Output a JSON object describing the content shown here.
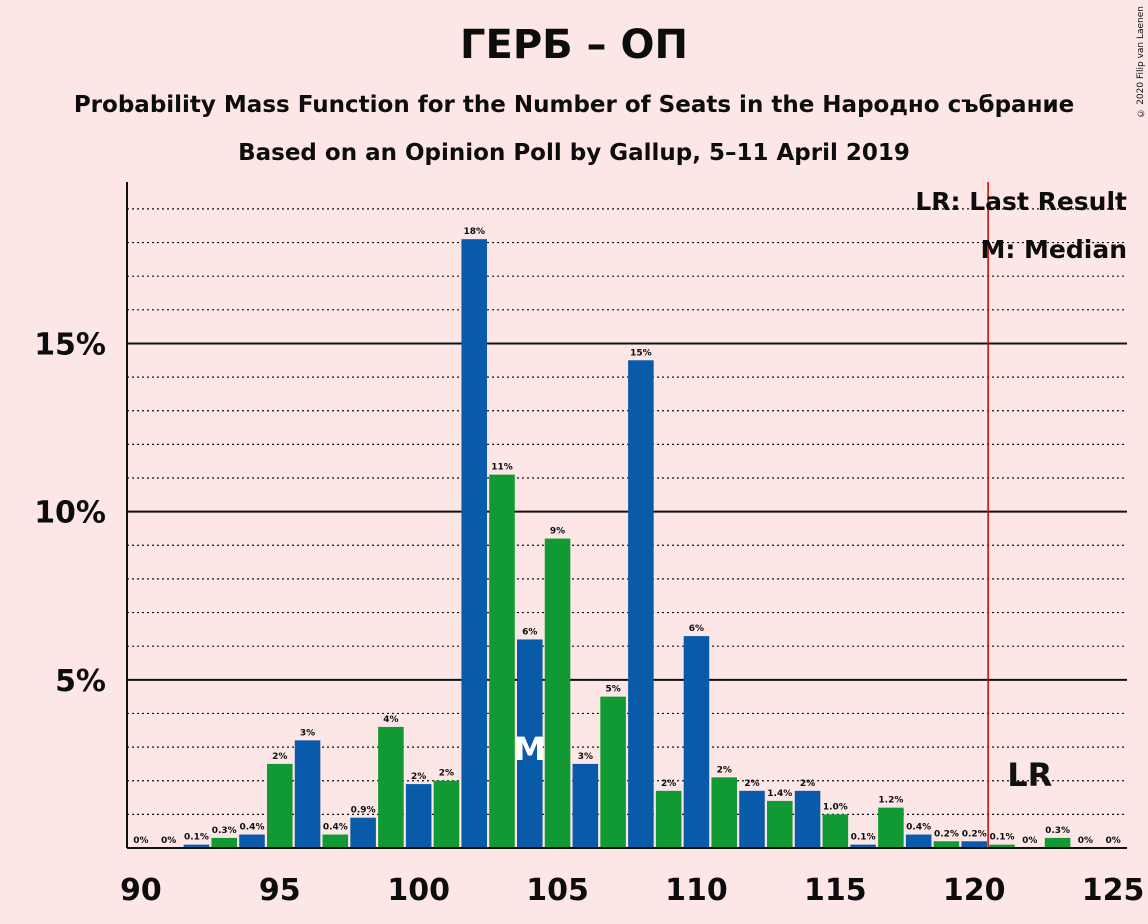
{
  "header": {
    "title": "ГЕРБ – ОП",
    "subtitle1": "Probability Mass Function for the Number of Seats in the Народно събрание",
    "subtitle2": "Based on an Opinion Poll by Gallup, 5–11 April 2019",
    "copyright": "© 2020 Filip van Laenen"
  },
  "legend": {
    "lr": "LR: Last Result",
    "median": "M: Median",
    "lr_marker": "LR",
    "median_marker": "M"
  },
  "colors": {
    "blue": "#0a5aaa",
    "green": "#119933",
    "last_result_line": "#cc0000",
    "background": "#fde6e6"
  },
  "chart_data": {
    "type": "bar",
    "x": [
      90,
      91,
      92,
      93,
      94,
      95,
      96,
      97,
      98,
      99,
      100,
      101,
      102,
      103,
      104,
      105,
      106,
      107,
      108,
      109,
      110,
      111,
      112,
      113,
      114,
      115,
      116,
      117,
      118,
      119,
      120,
      121,
      122,
      123,
      124,
      125
    ],
    "values": [
      0,
      0,
      0.1,
      0.3,
      0.4,
      2.5,
      3.2,
      0.4,
      0.9,
      3.6,
      1.9,
      2.0,
      18.1,
      11.1,
      6.2,
      9.2,
      2.5,
      4.5,
      14.5,
      1.7,
      6.3,
      2.1,
      1.7,
      1.4,
      1.7,
      1.0,
      0.1,
      1.2,
      0.4,
      0.2,
      0.2,
      0.1,
      0,
      0.3,
      0,
      0
    ],
    "labels": [
      "0%",
      "0%",
      "0.1%",
      "0.3%",
      "0.4%",
      "2%",
      "3%",
      "0.4%",
      "0.9%",
      "4%",
      "2%",
      "2%",
      "18%",
      "11%",
      "6%",
      "9%",
      "3%",
      "5%",
      "15%",
      "2%",
      "6%",
      "2%",
      "2%",
      "1.4%",
      "2%",
      "1.0%",
      "0.1%",
      "1.2%",
      "0.4%",
      "0.2%",
      "0.2%",
      "0.1%",
      "0%",
      "0.3%",
      "0%",
      "0%"
    ],
    "x_ticks": [
      90,
      95,
      100,
      105,
      110,
      115,
      120,
      125
    ],
    "y_ticks": [
      5,
      10,
      15
    ],
    "y_tick_labels": [
      "5%",
      "10%",
      "15%"
    ],
    "ylim": [
      0,
      19.8
    ],
    "xlim": [
      89.5,
      125.5
    ],
    "median": 104,
    "last_result": 121,
    "legend_position": "top-right"
  }
}
